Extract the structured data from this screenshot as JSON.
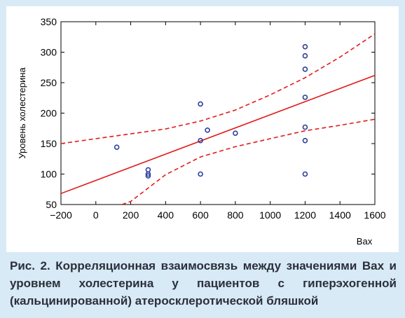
{
  "caption": "Рис. 2. Корреляционная взаимосвязь между значениями Вах и уровнем холестерина у пациентов с гиперэхогенной (кальцинированной) атеросклеротической бляшкой",
  "colors": {
    "background": "#d7eaf6",
    "points": "#2e3f9c",
    "fit_line": "#e21b1b",
    "confidence_band": "#e21b1b"
  },
  "chart_data": {
    "type": "scatter",
    "title": "",
    "xlabel": "Вах",
    "ylabel": "Уровень холестерина",
    "xlim": [
      -200,
      1600
    ],
    "ylim": [
      50,
      350
    ],
    "x_ticks": [
      "−200",
      "0",
      "200",
      "400",
      "600",
      "800",
      "1000",
      "1200",
      "1400",
      "1600"
    ],
    "y_ticks": [
      "50",
      "100",
      "150",
      "200",
      "250",
      "300",
      "350"
    ],
    "x_tick_values": [
      -200,
      0,
      200,
      400,
      600,
      800,
      1000,
      1200,
      1400,
      1600
    ],
    "y_tick_values": [
      50,
      100,
      150,
      200,
      250,
      300,
      350
    ],
    "grid": false,
    "points": [
      {
        "x": 120,
        "y": 144
      },
      {
        "x": 300,
        "y": 107
      },
      {
        "x": 300,
        "y": 100
      },
      {
        "x": 300,
        "y": 97
      },
      {
        "x": 600,
        "y": 215
      },
      {
        "x": 600,
        "y": 155
      },
      {
        "x": 600,
        "y": 100
      },
      {
        "x": 640,
        "y": 172
      },
      {
        "x": 800,
        "y": 167
      },
      {
        "x": 1200,
        "y": 309
      },
      {
        "x": 1200,
        "y": 294
      },
      {
        "x": 1200,
        "y": 272
      },
      {
        "x": 1200,
        "y": 226
      },
      {
        "x": 1200,
        "y": 177
      },
      {
        "x": 1200,
        "y": 155
      },
      {
        "x": 1200,
        "y": 100
      }
    ],
    "regression_line": {
      "x": [
        -200,
        1600
      ],
      "y": [
        68,
        262
      ]
    },
    "confidence_upper": {
      "x": [
        -200,
        0,
        200,
        400,
        600,
        800,
        1000,
        1200,
        1400,
        1600
      ],
      "y": [
        150,
        158,
        166,
        174,
        187,
        205,
        230,
        258,
        292,
        330
      ]
    },
    "confidence_lower": {
      "x": [
        150,
        200,
        400,
        600,
        800,
        1000,
        1200,
        1400,
        1600
      ],
      "y": [
        50,
        55,
        99,
        128,
        145,
        158,
        171,
        180,
        190
      ]
    }
  }
}
